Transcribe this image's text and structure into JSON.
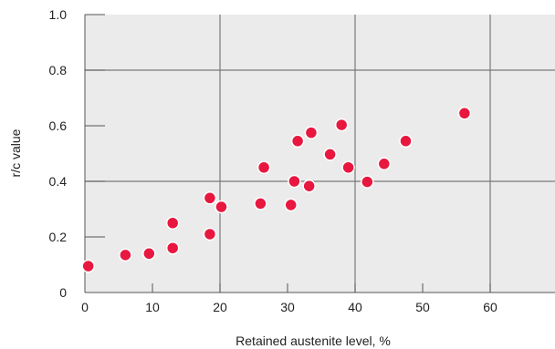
{
  "chart_data": {
    "type": "scatter",
    "xlabel": "Retained austenite level, %",
    "ylabel": "r/c value",
    "xlim": [
      0,
      70
    ],
    "ylim": [
      0,
      1.0
    ],
    "x_ticks": [
      "0",
      "10",
      "20",
      "30",
      "40",
      "50",
      "60"
    ],
    "y_ticks": [
      "0",
      "0.2",
      "0.4",
      "0.6",
      "0.8",
      "1.0"
    ],
    "major_gridlines_x": [
      20,
      40,
      60
    ],
    "major_gridlines_y": [
      0.4,
      0.8
    ],
    "plot_background": "#ebebeb",
    "grid_color": "#7a7a7a",
    "marker_color": "#e8173f",
    "points": [
      {
        "x": 0.5,
        "y": 0.095
      },
      {
        "x": 6,
        "y": 0.135
      },
      {
        "x": 9.5,
        "y": 0.14
      },
      {
        "x": 13,
        "y": 0.16
      },
      {
        "x": 13,
        "y": 0.25
      },
      {
        "x": 18.5,
        "y": 0.21
      },
      {
        "x": 18.5,
        "y": 0.34
      },
      {
        "x": 20.2,
        "y": 0.308
      },
      {
        "x": 26,
        "y": 0.32
      },
      {
        "x": 26.5,
        "y": 0.45
      },
      {
        "x": 30.5,
        "y": 0.315
      },
      {
        "x": 31,
        "y": 0.4
      },
      {
        "x": 31.5,
        "y": 0.545
      },
      {
        "x": 33.2,
        "y": 0.383
      },
      {
        "x": 33.5,
        "y": 0.575
      },
      {
        "x": 36.3,
        "y": 0.497
      },
      {
        "x": 38,
        "y": 0.603
      },
      {
        "x": 39,
        "y": 0.45
      },
      {
        "x": 41.8,
        "y": 0.398
      },
      {
        "x": 44.3,
        "y": 0.463
      },
      {
        "x": 47.5,
        "y": 0.545
      },
      {
        "x": 56.2,
        "y": 0.645
      }
    ]
  }
}
